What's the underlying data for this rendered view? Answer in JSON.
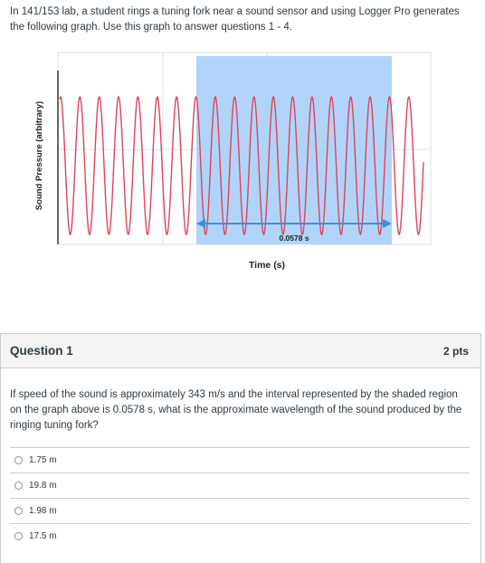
{
  "intro_text": "In 141/153 lab, a student rings a tuning fork near a sound sensor and using Logger Pro generates the following graph. Use this graph to answer questions 1 - 4.",
  "graph": {
    "ylabel": "Sound Pressure (arbitrary)",
    "xlabel": "Time (s)",
    "interval_label": "0.0578 s",
    "wave_color": "#e0435a",
    "shade_color": "#a9d0fa",
    "arrow_color": "#3e8fd8"
  },
  "chart_data": {
    "type": "line",
    "xlabel": "Time (s)",
    "ylabel": "Sound Pressure (arbitrary)",
    "cycles_visible": 19,
    "shaded_interval_cycles": 10,
    "shaded_interval_duration": "0.0578 s"
  },
  "question": {
    "title": "Question 1",
    "points": "2 pts",
    "text": "If speed of the sound is approximately 343 m/s and the interval represented by the shaded region on the graph above is 0.0578 s, what is the approximate wavelength of the sound produced by the ringing tuning fork?",
    "answers": [
      {
        "label": "1.75 m"
      },
      {
        "label": "19.8 m"
      },
      {
        "label": "1.98 m"
      },
      {
        "label": "17.5 m"
      }
    ]
  }
}
